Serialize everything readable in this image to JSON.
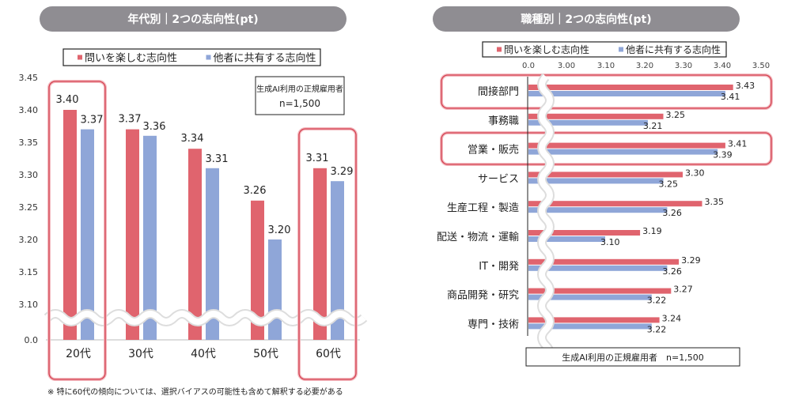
{
  "colors": {
    "series1": "#e0646e",
    "series2": "#8fa6d8",
    "title_bg": "#8f8d92",
    "highlight": "#d4404f"
  },
  "chart_data": [
    {
      "type": "bar",
      "title": "年代別｜2つの志向性(pt)",
      "categories": [
        "20代",
        "30代",
        "40代",
        "50代",
        "60代"
      ],
      "series": [
        {
          "name": "問いを楽しむ志向性",
          "values": [
            3.4,
            3.37,
            3.34,
            3.26,
            3.31
          ]
        },
        {
          "name": "他者に共有する志向性",
          "values": [
            3.37,
            3.36,
            3.31,
            3.2,
            3.29
          ]
        }
      ],
      "data_labels": [
        [
          "3.40",
          "3.37",
          "3.34",
          "3.26",
          "3.31"
        ],
        [
          "3.37",
          "3.36",
          "3.31",
          "3.20",
          "3.29"
        ]
      ],
      "yticks": [
        "3.45",
        "3.40",
        "3.35",
        "3.30",
        "3.25",
        "3.20",
        "3.15",
        "3.10",
        "0.0"
      ],
      "ylim": [
        3.05,
        3.45
      ],
      "axis_break": true,
      "legend_position": "top",
      "highlighted": [
        "20代",
        "60代"
      ],
      "note_lines": [
        "生成AI利用の正規雇用者",
        "n=1,500"
      ],
      "footnote": "※ 特に60代の傾向については、選択バイアスの可能性も含めて解釈する必要がある"
    },
    {
      "type": "bar",
      "orientation": "horizontal",
      "title": "職種別｜2つの志向性(pt)",
      "categories": [
        "間接部門",
        "事務職",
        "営業・販売",
        "サービス",
        "生産工程・製造",
        "配送・物流・運輸",
        "IT・開発",
        "商品開発・研究",
        "専門・技術"
      ],
      "series": [
        {
          "name": "問いを楽しむ志向性",
          "values": [
            3.43,
            3.25,
            3.41,
            3.3,
            3.35,
            3.19,
            3.29,
            3.27,
            3.24
          ]
        },
        {
          "name": "他者に共有する志向性",
          "values": [
            3.41,
            3.21,
            3.39,
            3.25,
            3.26,
            3.1,
            3.26,
            3.22,
            3.22
          ]
        }
      ],
      "data_labels": [
        [
          "3.43",
          "3.25",
          "3.41",
          "3.30",
          "3.35",
          "3.19",
          "3.29",
          "3.27",
          "3.24"
        ],
        [
          "3.41",
          "3.21",
          "3.39",
          "3.25",
          "3.26",
          "3.10",
          "3.26",
          "3.22",
          "3.22"
        ]
      ],
      "xticks": [
        "0.0",
        "3.00",
        "3.10",
        "3.20",
        "3.30",
        "3.40",
        "3.50"
      ],
      "xlim": [
        2.9,
        3.5
      ],
      "axis_break": true,
      "legend_position": "top",
      "highlighted": [
        "間接部門",
        "営業・販売"
      ],
      "note": "生成AI利用の正規雇用者　n=1,500"
    }
  ]
}
